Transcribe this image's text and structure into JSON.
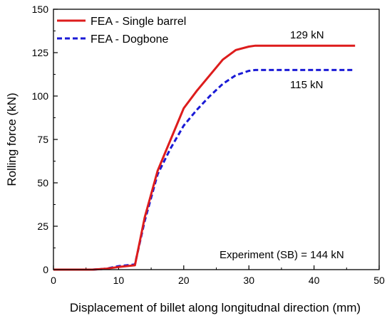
{
  "chart_data": {
    "type": "line",
    "xlabel": "Displacement of billet along longitudnal direction (mm)",
    "ylabel": "Rolling force (kN)",
    "xlim": [
      0,
      50
    ],
    "ylim": [
      0,
      150
    ],
    "x_ticks": [
      "0",
      "10",
      "20",
      "30",
      "40",
      "50"
    ],
    "y_ticks": [
      "0",
      "25",
      "50",
      "75",
      "100",
      "125",
      "150"
    ],
    "legend_position": "top-left",
    "grid": false,
    "series": [
      {
        "name": "FEA - Single barrel",
        "color": "#dd1c1c",
        "style": "solid",
        "x": [
          0,
          4,
          6,
          8,
          10,
          12.5,
          14,
          16,
          18,
          20,
          22,
          24,
          26,
          28,
          30,
          31,
          32,
          35,
          40,
          46.3
        ],
        "y": [
          0,
          0,
          0,
          0.5,
          1.5,
          2.5,
          30,
          57,
          75,
          93,
          103,
          112,
          121,
          126.5,
          128.5,
          129,
          129,
          129,
          129,
          129
        ]
      },
      {
        "name": "FEA - Dogbone",
        "color": "#1a1ad6",
        "style": "dashed",
        "x": [
          0,
          4,
          6,
          8,
          10,
          12.5,
          14,
          16,
          18,
          20,
          22,
          24,
          26,
          28,
          30,
          31,
          32,
          35,
          40,
          46.3
        ],
        "y": [
          0,
          0,
          0,
          0.5,
          2,
          3,
          28,
          55,
          70,
          83,
          92,
          100,
          107,
          112,
          114.5,
          115,
          115,
          115,
          115,
          115
        ]
      }
    ],
    "annotations": [
      {
        "text": "129 kN"
      },
      {
        "text": "115 kN"
      },
      {
        "text": "Experiment (SB) = 144 kN"
      }
    ]
  }
}
